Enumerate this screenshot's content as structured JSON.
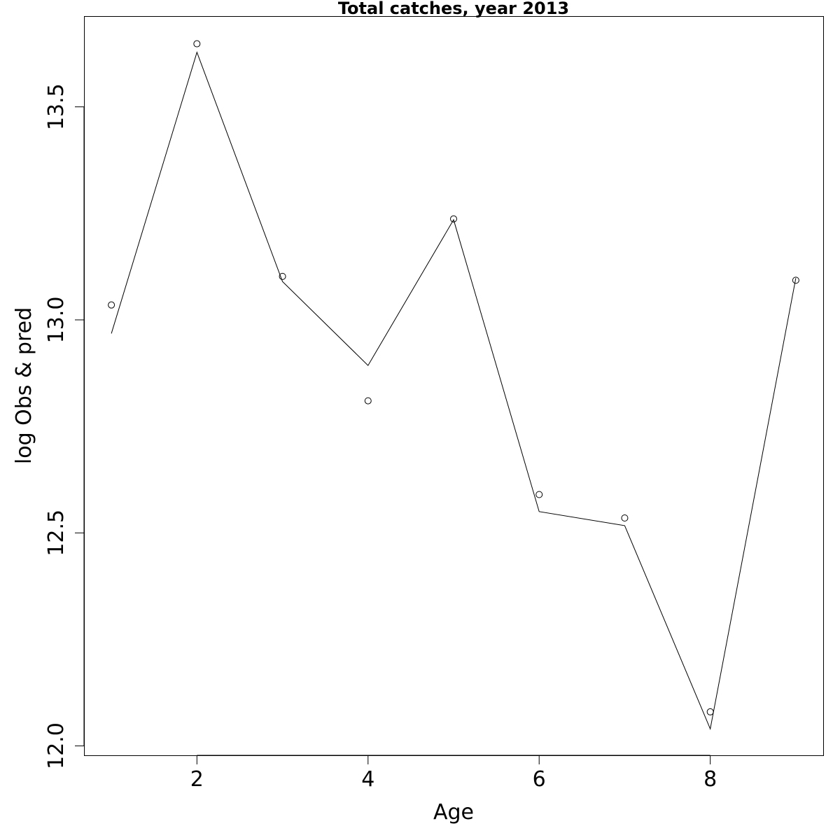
{
  "chart_data": {
    "type": "line",
    "title": "Total catches, year 2013",
    "xlabel": "Age",
    "ylabel": "log Obs & pred",
    "xlim": [
      0.68,
      9.32
    ],
    "ylim": [
      11.978,
      13.713
    ],
    "x_ticks": [
      2,
      4,
      6,
      8
    ],
    "x_tick_labels": [
      "2",
      "4",
      "6",
      "8"
    ],
    "y_ticks": [
      12.0,
      12.5,
      13.0,
      13.5
    ],
    "y_tick_labels": [
      "12.0",
      "12.5",
      "13.0",
      "13.5"
    ],
    "grid": false,
    "legend": "none",
    "series": [
      {
        "style": "points",
        "marker": "open-circle",
        "x": [
          1,
          2,
          3,
          4,
          5,
          6,
          7,
          8,
          9
        ],
        "y": [
          13.035,
          13.648,
          13.102,
          12.81,
          13.237,
          12.59,
          12.535,
          12.08,
          13.093
        ]
      },
      {
        "style": "line",
        "x": [
          1,
          2,
          3,
          4,
          5,
          6,
          7,
          8,
          9
        ],
        "y": [
          12.968,
          13.628,
          13.09,
          12.893,
          13.235,
          12.55,
          12.517,
          12.04,
          13.098
        ]
      }
    ]
  }
}
